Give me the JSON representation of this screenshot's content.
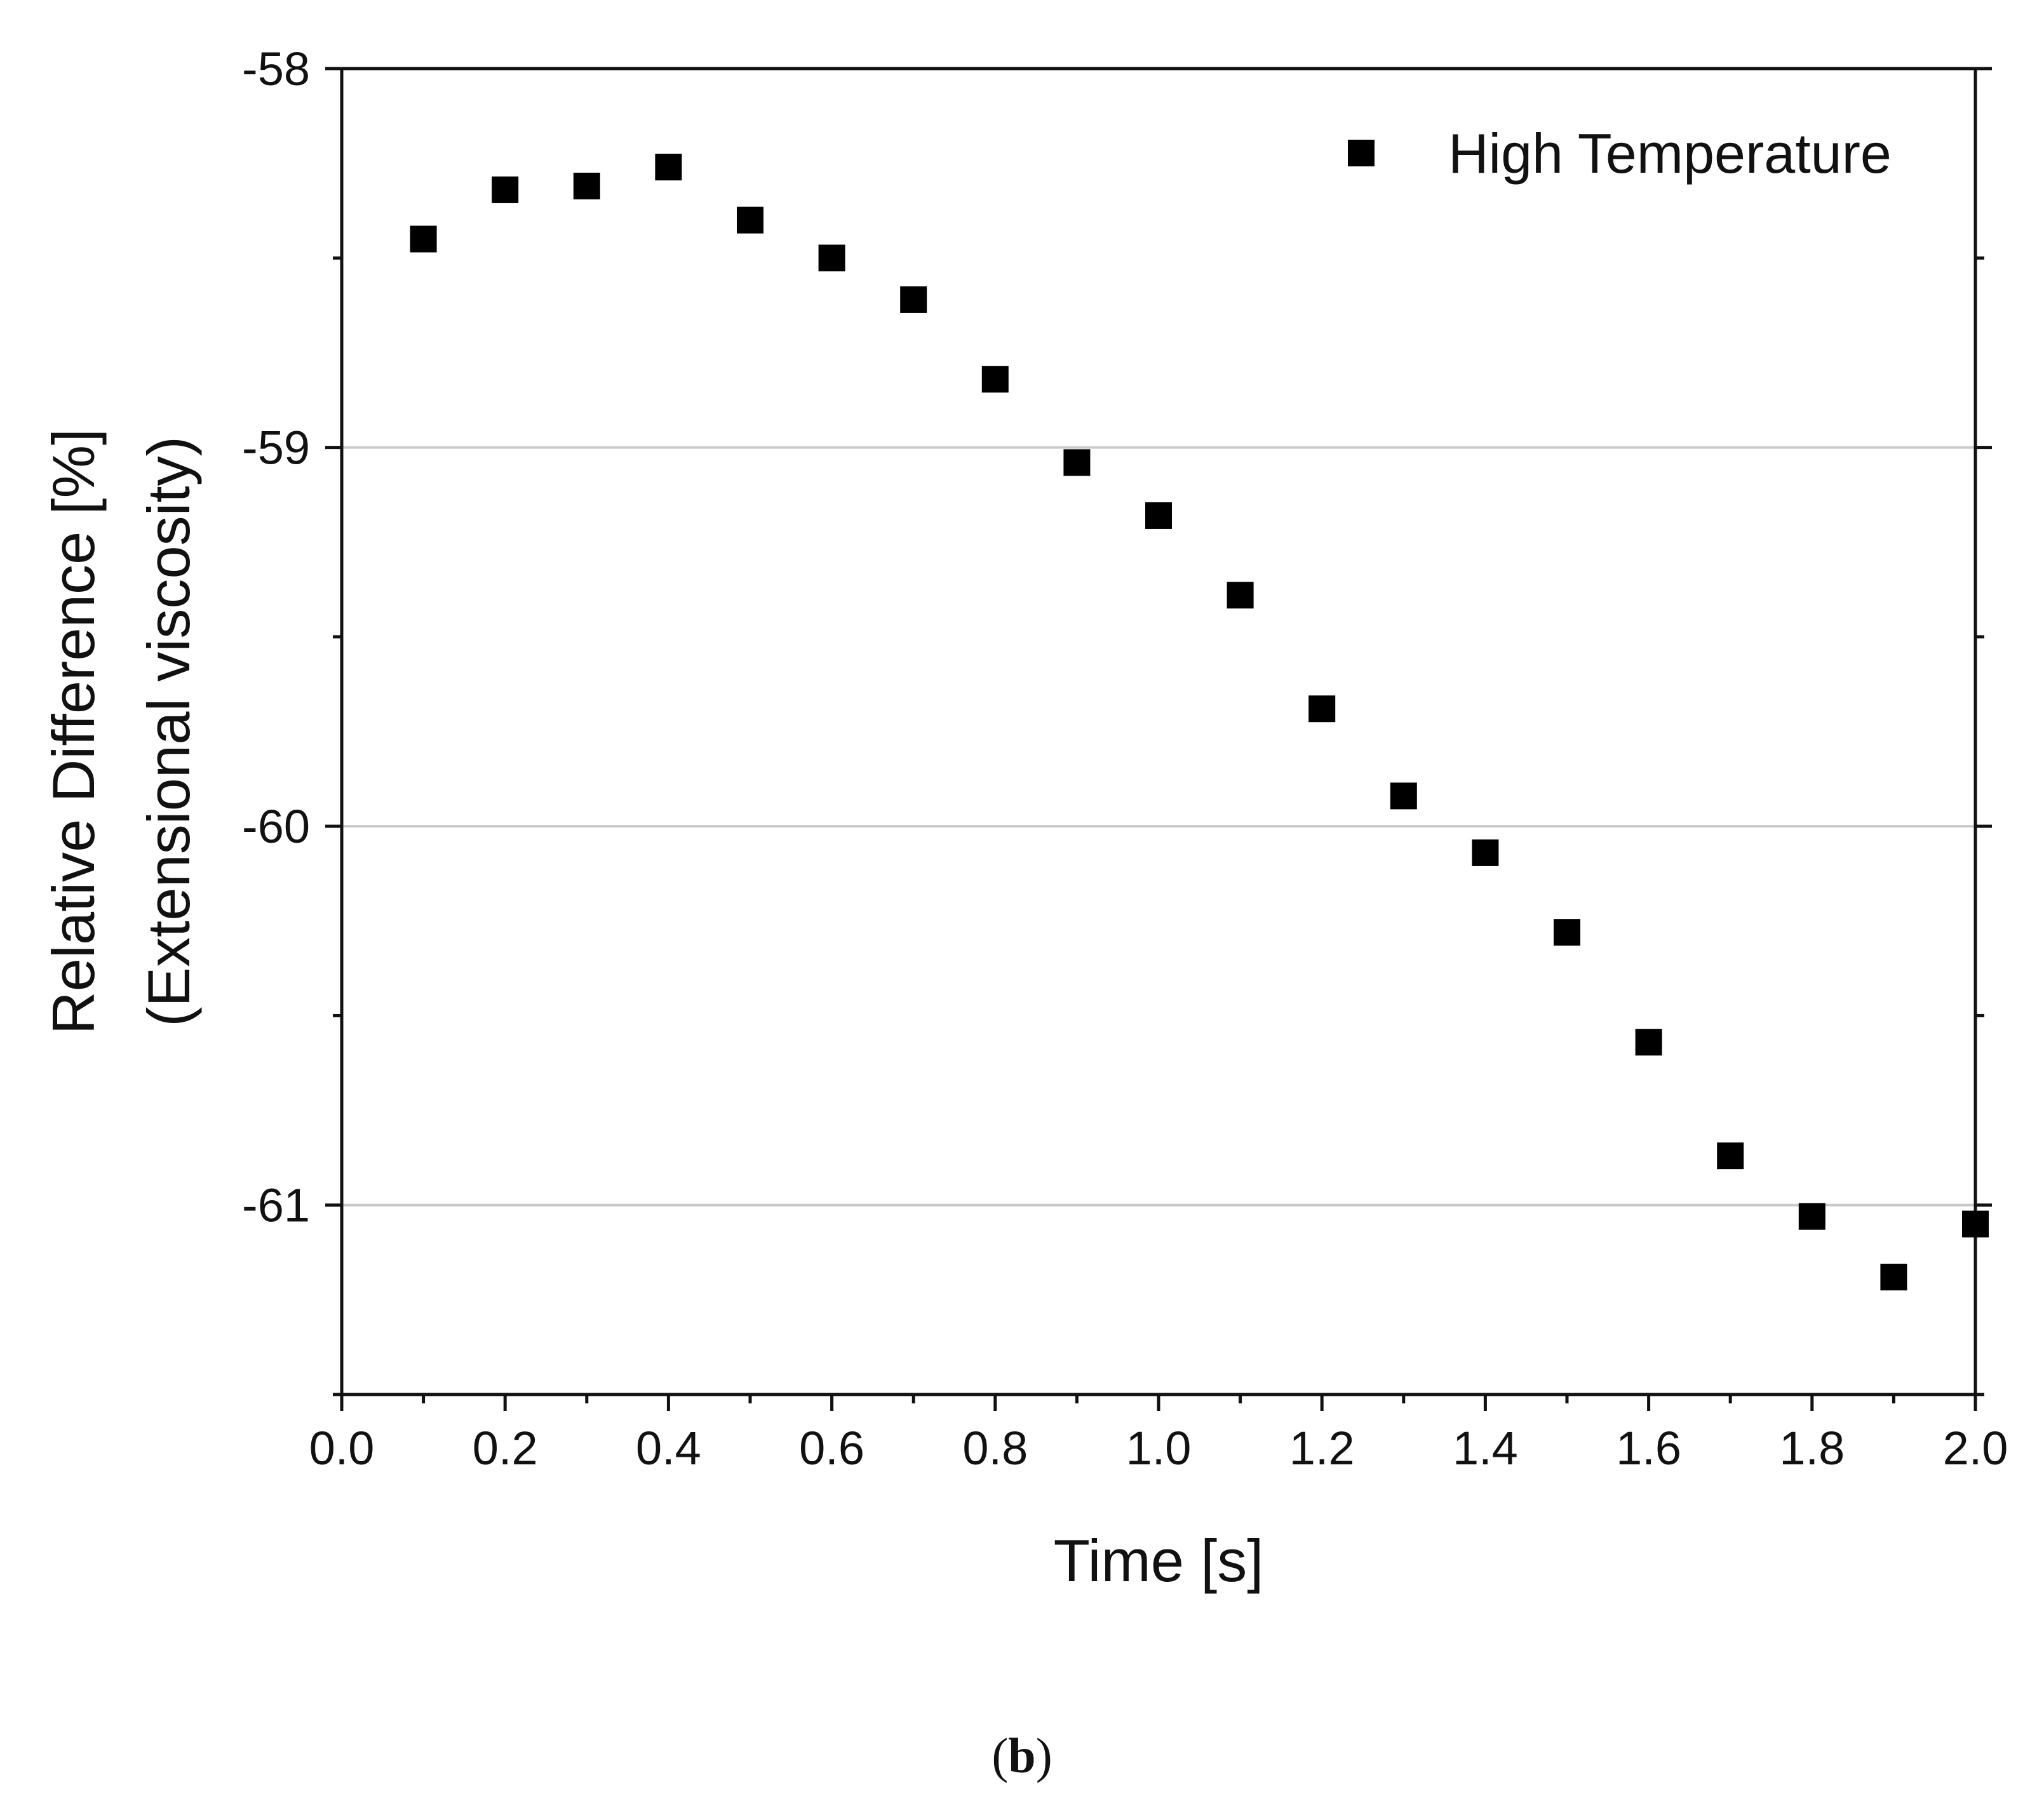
{
  "chart_data": {
    "type": "scatter",
    "title": "",
    "xlabel": "Time [s]",
    "ylabel_line1": "Relative Difference [%]",
    "ylabel_line2": "(Extensional viscosity)",
    "xlim": [
      0.0,
      2.0
    ],
    "ylim": [
      -61.5,
      -58.0
    ],
    "x_ticks": [
      0.0,
      0.2,
      0.4,
      0.6,
      0.8,
      1.0,
      1.2,
      1.4,
      1.6,
      1.8,
      2.0
    ],
    "x_tick_labels": [
      "0.0",
      "0.2",
      "0.4",
      "0.6",
      "0.8",
      "1.0",
      "1.2",
      "1.4",
      "1.6",
      "1.8",
      "2.0"
    ],
    "y_ticks": [
      -58,
      -59,
      -60,
      -61
    ],
    "y_tick_labels": [
      "-58",
      "-59",
      "-60",
      "-61"
    ],
    "y_minor_ticks": [
      -58.5,
      -59.5,
      -60.5,
      -61.5
    ],
    "gridlines_y": [
      -59,
      -60,
      -61
    ],
    "legend_position": "top-right",
    "series": [
      {
        "name": "High Temperature",
        "marker": "square",
        "color": "#000000",
        "x": [
          0.1,
          0.2,
          0.3,
          0.4,
          0.5,
          0.6,
          0.7,
          0.8,
          0.9,
          1.0,
          1.1,
          1.2,
          1.3,
          1.4,
          1.5,
          1.6,
          1.7,
          1.8,
          1.9,
          2.0
        ],
        "y": [
          -58.45,
          -58.32,
          -58.31,
          -58.26,
          -58.4,
          -58.5,
          -58.61,
          -58.82,
          -59.04,
          -59.18,
          -59.39,
          -59.69,
          -59.92,
          -60.07,
          -60.28,
          -60.57,
          -60.87,
          -61.03,
          -61.19,
          -61.05
        ]
      }
    ]
  },
  "caption": {
    "open": "(",
    "label": "b",
    "close": ")"
  }
}
